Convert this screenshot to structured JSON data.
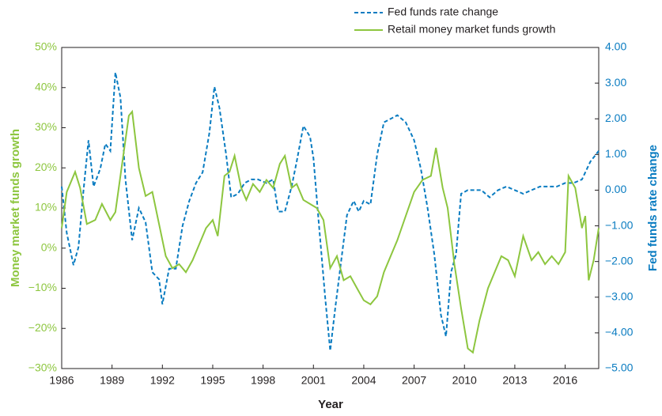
{
  "chart_data": {
    "type": "line",
    "xlabel": "Year",
    "ylabel": "Money market funds growth",
    "y2label": "Fed funds rate change",
    "xlim": [
      1986,
      2018
    ],
    "xticks": [
      1986,
      1989,
      1992,
      1995,
      1998,
      2001,
      2004,
      2007,
      2010,
      2013,
      2016
    ],
    "ylim": [
      -30,
      50
    ],
    "yticks": [
      {
        "value": -30,
        "label": "−30%"
      },
      {
        "value": -20,
        "label": "−20%"
      },
      {
        "value": -10,
        "label": "−10%"
      },
      {
        "value": 0,
        "label": "0%"
      },
      {
        "value": 10,
        "label": "10%"
      },
      {
        "value": 20,
        "label": "20%"
      },
      {
        "value": 30,
        "label": "30%"
      },
      {
        "value": 40,
        "label": "40%"
      },
      {
        "value": 50,
        "label": "50%"
      }
    ],
    "y2lim": [
      -5,
      4
    ],
    "y2ticks": [
      {
        "value": -5,
        "label": "−5.00"
      },
      {
        "value": -4,
        "label": "−4.00"
      },
      {
        "value": -3,
        "label": "−3.00"
      },
      {
        "value": -2,
        "label": "−2.00"
      },
      {
        "value": -1,
        "label": "−1.00"
      },
      {
        "value": 0,
        "label": "0.00"
      },
      {
        "value": 1,
        "label": "1.00"
      },
      {
        "value": 2,
        "label": "2.00"
      },
      {
        "value": 3,
        "label": "3.00"
      },
      {
        "value": 4,
        "label": "4.00"
      }
    ],
    "left_color": "#8dc63f",
    "right_color": "#0a7cc1",
    "legend": "top-right",
    "series": [
      {
        "name": "Fed funds rate change",
        "color": "#0a7cc1",
        "dashed": true,
        "axis": "y2",
        "x": [
          1986.0,
          1986.3,
          1986.7,
          1987.0,
          1987.3,
          1987.6,
          1987.9,
          1988.3,
          1988.6,
          1988.9,
          1989.2,
          1989.5,
          1989.8,
          1990.2,
          1990.6,
          1991.0,
          1991.4,
          1991.8,
          1992.0,
          1992.4,
          1992.8,
          1993.2,
          1993.6,
          1994.0,
          1994.4,
          1994.8,
          1995.1,
          1995.4,
          1995.8,
          1996.1,
          1996.5,
          1996.9,
          1997.3,
          1997.7,
          1998.2,
          1998.6,
          1998.9,
          1999.3,
          1999.7,
          2000.0,
          2000.4,
          2000.8,
          2001.0,
          2001.3,
          2001.7,
          2002.0,
          2002.3,
          2002.7,
          2003.0,
          2003.4,
          2003.7,
          2004.0,
          2004.4,
          2004.8,
          2005.2,
          2005.6,
          2006.0,
          2006.5,
          2007.0,
          2007.4,
          2007.8,
          2008.2,
          2008.6,
          2008.9,
          2009.2,
          2009.5,
          2009.8,
          2010.2,
          2010.6,
          2011.0,
          2011.5,
          2012.0,
          2012.5,
          2013.0,
          2013.5,
          2014.0,
          2014.5,
          2015.0,
          2015.5,
          2016.0,
          2016.5,
          2017.0,
          2017.5,
          2018.0
        ],
        "values": [
          0.1,
          -1.2,
          -2.1,
          -1.6,
          0.0,
          1.4,
          0.1,
          0.6,
          1.3,
          1.1,
          3.3,
          2.6,
          0.3,
          -1.4,
          -0.5,
          -0.9,
          -2.3,
          -2.5,
          -3.2,
          -2.2,
          -2.2,
          -1.0,
          -0.3,
          0.2,
          0.5,
          1.6,
          2.9,
          2.3,
          1.0,
          -0.2,
          -0.1,
          0.2,
          0.3,
          0.3,
          0.2,
          0.3,
          -0.6,
          -0.6,
          0.1,
          0.8,
          1.8,
          1.5,
          0.9,
          -0.8,
          -3.0,
          -4.5,
          -3.3,
          -1.8,
          -0.7,
          -0.3,
          -0.6,
          -0.3,
          -0.4,
          1.0,
          1.9,
          2.0,
          2.1,
          1.9,
          1.4,
          0.6,
          -0.5,
          -1.8,
          -3.5,
          -4.1,
          -2.3,
          -1.8,
          -0.1,
          0.0,
          0.0,
          0.0,
          -0.2,
          0.0,
          0.1,
          0.0,
          -0.1,
          0.0,
          0.1,
          0.1,
          0.1,
          0.2,
          0.2,
          0.3,
          0.8,
          1.1
        ]
      },
      {
        "name": "Retail money market funds growth",
        "color": "#8dc63f",
        "dashed": false,
        "axis": "y",
        "x": [
          1986.0,
          1986.3,
          1986.8,
          1987.1,
          1987.5,
          1988.0,
          1988.4,
          1988.9,
          1989.2,
          1989.6,
          1990.0,
          1990.2,
          1990.6,
          1991.0,
          1991.4,
          1991.8,
          1992.2,
          1992.6,
          1993.0,
          1993.4,
          1993.8,
          1994.2,
          1994.6,
          1995.0,
          1995.3,
          1995.7,
          1996.0,
          1996.3,
          1996.7,
          1997.0,
          1997.4,
          1997.8,
          1998.2,
          1998.6,
          1999.0,
          1999.3,
          1999.7,
          2000.0,
          2000.4,
          2000.8,
          2001.2,
          2001.6,
          2002.0,
          2002.4,
          2002.8,
          2003.2,
          2003.6,
          2004.0,
          2004.4,
          2004.8,
          2005.2,
          2005.6,
          2006.0,
          2006.5,
          2007.0,
          2007.5,
          2008.0,
          2008.3,
          2008.7,
          2009.0,
          2009.4,
          2009.8,
          2010.2,
          2010.5,
          2010.9,
          2011.4,
          2011.8,
          2012.2,
          2012.6,
          2013.0,
          2013.5,
          2014.0,
          2014.4,
          2014.8,
          2015.2,
          2015.6,
          2016.0,
          2016.2,
          2016.6,
          2017.0,
          2017.2,
          2017.4,
          2017.7,
          2018.0
        ],
        "values": [
          5,
          14,
          19,
          15,
          6,
          7,
          11,
          7,
          9,
          21,
          33,
          34,
          20,
          13,
          14,
          6,
          -2,
          -5,
          -4,
          -6,
          -3,
          1,
          5,
          7,
          3,
          18,
          19,
          23,
          15,
          12,
          16,
          14,
          17,
          15,
          21,
          23,
          15,
          16,
          12,
          11,
          10,
          7,
          -5,
          -2,
          -8,
          -7,
          -10,
          -13,
          -14,
          -12,
          -6,
          -2,
          2,
          8,
          14,
          17,
          18,
          25,
          15,
          10,
          -4,
          -15,
          -25,
          -26,
          -18,
          -10,
          -6,
          -2,
          -3,
          -7,
          3,
          -3,
          -1,
          -4,
          -2,
          -4,
          -1,
          18,
          15,
          5,
          8,
          -8,
          -3,
          5
        ]
      }
    ]
  }
}
